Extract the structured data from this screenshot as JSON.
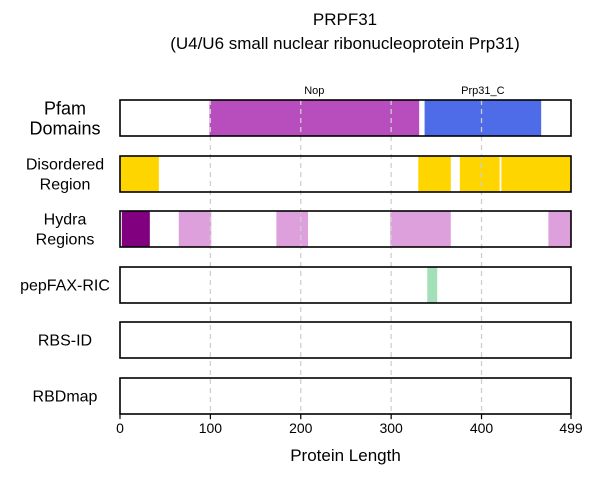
{
  "chart_data": {
    "type": "track",
    "title": "PRPF31",
    "subtitle": "(U4/U6 small nuclear ribonucleoprotein Prp31)",
    "xlabel": "Protein Length",
    "xlim": [
      0,
      499
    ],
    "xticks": [
      "0",
      "100",
      "200",
      "300",
      "400",
      "499"
    ],
    "gridlines": [
      100,
      200,
      300,
      400
    ],
    "grid": true,
    "tracks": [
      {
        "label": "Pfam\nDomains",
        "segments": [
          {
            "start": 99,
            "end": 331,
            "color": "#B84DBD",
            "name": "Nop"
          },
          {
            "start": 337,
            "end": 466,
            "color": "#4E6CE8",
            "name": "Prp31_C"
          }
        ]
      },
      {
        "label": "Disordered\nRegion",
        "segments": [
          {
            "start": 0,
            "end": 43,
            "color": "#FFD500"
          },
          {
            "start": 330,
            "end": 366,
            "color": "#FFD500"
          },
          {
            "start": 376,
            "end": 420,
            "color": "#FFD500"
          },
          {
            "start": 422,
            "end": 499,
            "color": "#FFD500"
          }
        ]
      },
      {
        "label": "Hydra\nRegions",
        "segments": [
          {
            "start": 2,
            "end": 33,
            "color": "#800080"
          },
          {
            "start": 65,
            "end": 101,
            "color": "#DDA0DD"
          },
          {
            "start": 173,
            "end": 208,
            "color": "#DDA0DD"
          },
          {
            "start": 299,
            "end": 366,
            "color": "#DDA0DD"
          },
          {
            "start": 474,
            "end": 499,
            "color": "#DDA0DD"
          }
        ]
      },
      {
        "label": "pepFAX-RIC",
        "segments": [
          {
            "start": 340,
            "end": 351,
            "color": "#A3DFB9"
          }
        ]
      },
      {
        "label": "RBS-ID",
        "segments": []
      },
      {
        "label": "RBDmap",
        "segments": []
      }
    ]
  }
}
